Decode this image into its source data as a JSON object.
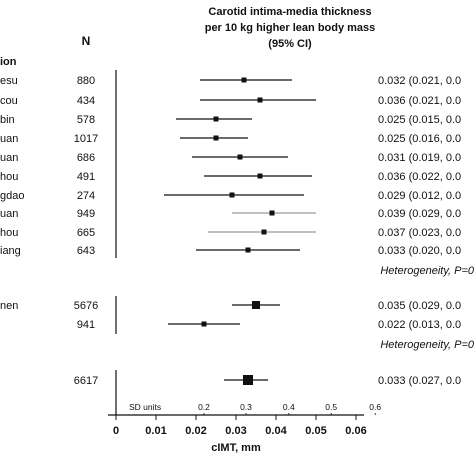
{
  "chart_data": {
    "type": "forest",
    "title_lines": [
      "Carotid intima-media thickness",
      "per 10 kg higher lean body mass",
      "(95% CI)"
    ],
    "n_header": "N",
    "group_header_fragment": "ion",
    "xlabel": "cIMT, mm",
    "xlim": [
      0,
      0.06
    ],
    "x_ticks": [
      0,
      0.01,
      0.02,
      0.03,
      0.04,
      0.05,
      0.06
    ],
    "x_tick_labels": [
      "0",
      "0.01",
      "0.02",
      "0.03",
      "0.04",
      "0.05",
      "0.06"
    ],
    "sd_units_label": "SD units",
    "sd_ticks": [
      {
        "x": 0.022,
        "label": "0.2"
      },
      {
        "x": 0.0325,
        "label": "0.3"
      },
      {
        "x": 0.0432,
        "label": "0.4"
      },
      {
        "x": 0.0538,
        "label": "0.5"
      },
      {
        "x": 0.0648,
        "label": "0.6"
      }
    ],
    "rows": [
      {
        "label": "esu",
        "n": "880",
        "est": 0.032,
        "lo": 0.021,
        "hi": 0.044,
        "text": "0.032 (0.021, 0.0",
        "grey": false
      },
      {
        "label": "cou",
        "n": "434",
        "est": 0.036,
        "lo": 0.021,
        "hi": 0.05,
        "text": "0.036 (0.021, 0.0",
        "grey": false
      },
      {
        "label": "bin",
        "n": "578",
        "est": 0.025,
        "lo": 0.015,
        "hi": 0.034,
        "text": "0.025 (0.015, 0.0",
        "grey": false
      },
      {
        "label": "uan",
        "n": "1017",
        "est": 0.025,
        "lo": 0.016,
        "hi": 0.033,
        "text": "0.025 (0.016, 0.0",
        "grey": false
      },
      {
        "label": "uan",
        "n": "686",
        "est": 0.031,
        "lo": 0.019,
        "hi": 0.043,
        "text": "0.031 (0.019, 0.0",
        "grey": false
      },
      {
        "label": "hou",
        "n": "491",
        "est": 0.036,
        "lo": 0.022,
        "hi": 0.049,
        "text": "0.036 (0.022, 0.0",
        "grey": false
      },
      {
        "label": "gdao",
        "n": "274",
        "est": 0.029,
        "lo": 0.012,
        "hi": 0.047,
        "text": "0.029 (0.012, 0.0",
        "grey": false
      },
      {
        "label": "uan",
        "n": "949",
        "est": 0.039,
        "lo": 0.029,
        "hi": 0.05,
        "text": "0.039 (0.029, 0.0",
        "grey": true
      },
      {
        "label": "hou",
        "n": "665",
        "est": 0.037,
        "lo": 0.023,
        "hi": 0.05,
        "text": "0.037 (0.023, 0.0",
        "grey": true
      },
      {
        "label": "iang",
        "n": "643",
        "est": 0.033,
        "lo": 0.02,
        "hi": 0.046,
        "text": "0.033 (0.020, 0.0",
        "grey": false
      }
    ],
    "heterogeneity_1": "Heterogeneity, P=0",
    "sex_rows": [
      {
        "label": "nen",
        "n": "5676",
        "est": 0.035,
        "lo": 0.029,
        "hi": 0.041,
        "text": "0.035 (0.029, 0.0"
      },
      {
        "label": "",
        "n": "941",
        "est": 0.022,
        "lo": 0.013,
        "hi": 0.031,
        "text": "0.022 (0.013, 0.0"
      }
    ],
    "heterogeneity_2": "Heterogeneity, P=0",
    "overall": {
      "n": "6617",
      "est": 0.033,
      "lo": 0.027,
      "hi": 0.038,
      "text": "0.033 (0.027, 0.0"
    }
  }
}
